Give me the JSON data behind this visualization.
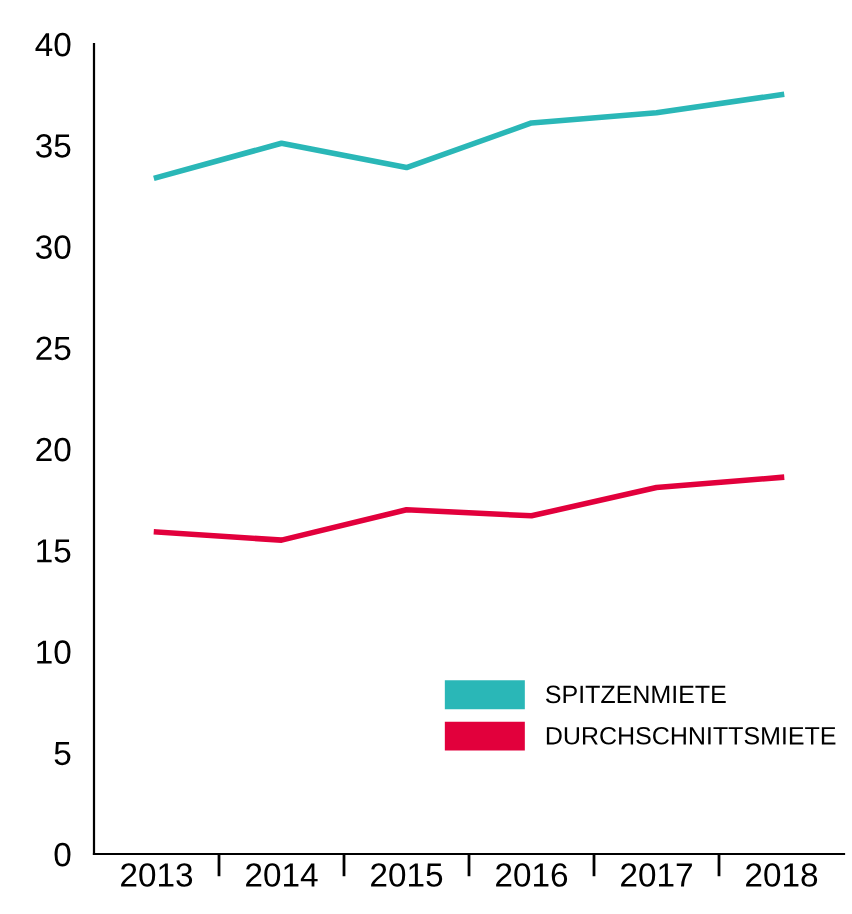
{
  "chart_data": {
    "type": "line",
    "categories": [
      "2013",
      "2014",
      "2015",
      "2016",
      "2017",
      "2018"
    ],
    "series": [
      {
        "name": "SPITZENMIETE",
        "color": "#2ab7b7",
        "values": [
          33.4,
          35.1,
          33.9,
          36.1,
          36.6,
          37.5
        ]
      },
      {
        "name": "DURCHSCHNITTSMIETE",
        "color": "#e2003c",
        "values": [
          15.9,
          15.5,
          17.0,
          16.7,
          18.1,
          18.6
        ]
      }
    ],
    "ylim": [
      0,
      40
    ],
    "yticks": [
      0,
      5,
      10,
      15,
      20,
      25,
      30,
      35,
      40
    ],
    "grid": false,
    "legend": "bottom right",
    "marker": "none",
    "line_style": "solid"
  }
}
